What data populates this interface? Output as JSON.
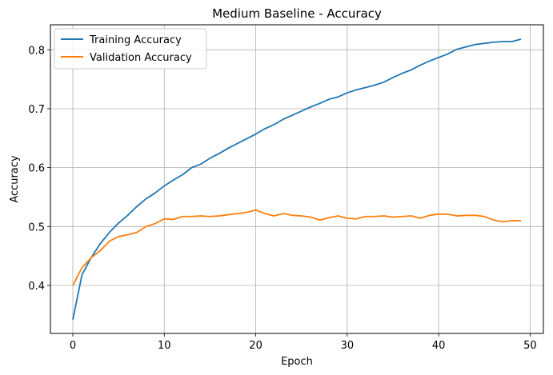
{
  "chart_data": {
    "type": "line",
    "title": "Medium Baseline - Accuracy",
    "xlabel": "Epoch",
    "ylabel": "Accuracy",
    "xlim": [
      -2.45,
      51.45
    ],
    "ylim": [
      0.3185,
      0.8425
    ],
    "xticks": [
      0,
      10,
      20,
      30,
      40,
      50
    ],
    "yticks": [
      0.4,
      0.5,
      0.6,
      0.7,
      0.8
    ],
    "xtick_labels": [
      "0",
      "10",
      "20",
      "30",
      "40",
      "50"
    ],
    "ytick_labels": [
      "0.4",
      "0.5",
      "0.6",
      "0.7",
      "0.8"
    ],
    "grid": true,
    "legend_position": "top-left",
    "x": [
      0,
      1,
      2,
      3,
      4,
      5,
      6,
      7,
      8,
      9,
      10,
      11,
      12,
      13,
      14,
      15,
      16,
      17,
      18,
      19,
      20,
      21,
      22,
      23,
      24,
      25,
      26,
      27,
      28,
      29,
      30,
      31,
      32,
      33,
      34,
      35,
      36,
      37,
      38,
      39,
      40,
      41,
      42,
      43,
      44,
      45,
      46,
      47,
      48,
      49
    ],
    "series": [
      {
        "name": "Training Accuracy",
        "color": "#1f77b4",
        "values": [
          0.342,
          0.418,
          0.447,
          0.471,
          0.49,
          0.506,
          0.519,
          0.534,
          0.547,
          0.557,
          0.569,
          0.579,
          0.588,
          0.6,
          0.606,
          0.616,
          0.624,
          0.633,
          0.641,
          0.649,
          0.657,
          0.666,
          0.673,
          0.682,
          0.689,
          0.696,
          0.703,
          0.709,
          0.716,
          0.72,
          0.727,
          0.732,
          0.736,
          0.74,
          0.745,
          0.753,
          0.76,
          0.766,
          0.774,
          0.781,
          0.787,
          0.793,
          0.801,
          0.805,
          0.809,
          0.811,
          0.813,
          0.814,
          0.814,
          0.818
        ]
      },
      {
        "name": "Validation Accuracy",
        "color": "#ff7f0e",
        "values": [
          0.4,
          0.43,
          0.447,
          0.459,
          0.475,
          0.483,
          0.486,
          0.49,
          0.5,
          0.505,
          0.513,
          0.512,
          0.517,
          0.517,
          0.518,
          0.517,
          0.518,
          0.52,
          0.522,
          0.524,
          0.528,
          0.522,
          0.518,
          0.522,
          0.519,
          0.518,
          0.516,
          0.511,
          0.515,
          0.518,
          0.514,
          0.513,
          0.517,
          0.517,
          0.518,
          0.516,
          0.517,
          0.518,
          0.514,
          0.519,
          0.521,
          0.521,
          0.518,
          0.519,
          0.519,
          0.517,
          0.511,
          0.508,
          0.51,
          0.51
        ]
      }
    ]
  }
}
